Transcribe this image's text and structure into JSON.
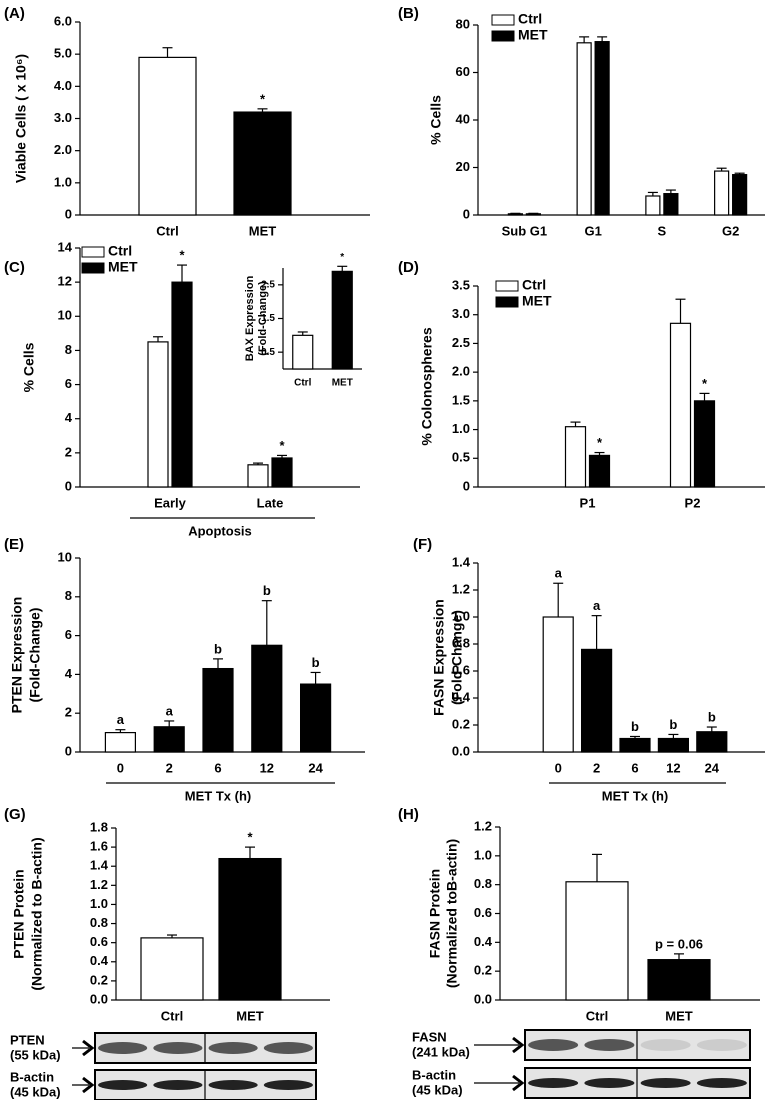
{
  "chart_data": [
    {
      "panel": "(A)",
      "type": "bar",
      "categories": [
        "Ctrl",
        "MET"
      ],
      "values": [
        4.9,
        3.2
      ],
      "errors": [
        0.3,
        0.1
      ],
      "colors": [
        "#ffffff",
        "#000000"
      ],
      "bar_labels": [
        null,
        "*"
      ],
      "ylabel": [
        "Viable Cells ( x 10⁶)"
      ],
      "ylim": [
        0,
        6
      ],
      "yticks": [
        0,
        {
          "value": 1,
          "label": "1.0"
        },
        {
          "value": 2,
          "label": "2.0"
        },
        {
          "value": 3,
          "label": "3.0"
        },
        {
          "value": 4,
          "label": "4.0"
        },
        {
          "value": 5,
          "label": "5.0"
        },
        {
          "value": 6,
          "label": "6.0"
        }
      ]
    },
    {
      "panel": "(B)",
      "type": "grouped_bar",
      "categories": [
        "Sub G1",
        "G1",
        "S",
        "G2"
      ],
      "series": [
        {
          "name": "Ctrl",
          "color": "#ffffff",
          "values": [
            0.5,
            72.5,
            8,
            18.5
          ],
          "errors": [
            0.2,
            2.5,
            1.5,
            1.2
          ]
        },
        {
          "name": "MET",
          "color": "#000000",
          "values": [
            0.5,
            73,
            9,
            17
          ],
          "errors": [
            0.2,
            2,
            1.5,
            0.6
          ]
        }
      ],
      "ylabel": [
        "% Cells"
      ],
      "ylim": [
        0,
        80
      ],
      "yticks": [
        0,
        20,
        40,
        60,
        80
      ],
      "legend": "upper left"
    },
    {
      "panel": "(C)",
      "type": "grouped_bar",
      "categories": [
        "Early",
        "Late"
      ],
      "xlabel": "Apoptosis",
      "series": [
        {
          "name": "Ctrl",
          "color": "#ffffff",
          "values": [
            8.5,
            1.3
          ],
          "errors": [
            0.3,
            0.1
          ]
        },
        {
          "name": "MET",
          "color": "#000000",
          "values": [
            12,
            1.7
          ],
          "errors": [
            1,
            0.15
          ],
          "labels": [
            "*",
            "*"
          ]
        }
      ],
      "ylabel": [
        "% Cells"
      ],
      "ylim": [
        0,
        14
      ],
      "yticks": [
        0,
        2,
        4,
        6,
        8,
        10,
        12,
        14
      ],
      "legend": "upper left",
      "inset": {
        "type": "bar",
        "categories": [
          "Ctrl",
          "MET"
        ],
        "values": [
          1.0,
          2.9
        ],
        "errors": [
          0.1,
          0.15
        ],
        "colors": [
          "#ffffff",
          "#000000"
        ],
        "bar_labels": [
          null,
          "*"
        ],
        "ylabel": [
          "BAX Expression",
          "(Fold-Change)"
        ],
        "ylim": [
          0,
          3
        ],
        "yticks": [
          0.5,
          1.5,
          2.5
        ]
      }
    },
    {
      "panel": "(D)",
      "type": "grouped_bar",
      "categories": [
        "P1",
        "P2"
      ],
      "series": [
        {
          "name": "Ctrl",
          "color": "#ffffff",
          "values": [
            1.05,
            2.85
          ],
          "errors": [
            0.08,
            0.42
          ]
        },
        {
          "name": "MET",
          "color": "#000000",
          "values": [
            0.55,
            1.5
          ],
          "errors": [
            0.05,
            0.13
          ],
          "labels": [
            "*",
            "*"
          ]
        }
      ],
      "ylabel": [
        "% Colonospheres"
      ],
      "ylim": [
        0,
        3.5
      ],
      "yticks": [
        0,
        0.5,
        {
          "value": 1,
          "label": "1.0"
        },
        1.5,
        {
          "value": 2,
          "label": "2.0"
        },
        2.5,
        {
          "value": 3,
          "label": "3.0"
        },
        3.5
      ],
      "legend": "upper left"
    },
    {
      "panel": "(E)",
      "type": "bar",
      "categories": [
        "0",
        "2",
        "6",
        "12",
        "24"
      ],
      "xlabel": "MET Tx (h)",
      "values": [
        1,
        1.3,
        4.3,
        5.5,
        3.5
      ],
      "errors": [
        0.15,
        0.3,
        0.5,
        2.3,
        0.6
      ],
      "colors": [
        "#ffffff",
        "#000000",
        "#000000",
        "#000000",
        "#000000"
      ],
      "bar_labels": [
        "a",
        "a",
        "b",
        "b",
        "b"
      ],
      "ylabel": [
        "PTEN Expression",
        "(Fold-Change)"
      ],
      "ylim": [
        0,
        10
      ],
      "yticks": [
        0,
        2,
        4,
        6,
        8,
        10
      ]
    },
    {
      "panel": "(F)",
      "type": "bar",
      "categories": [
        "0",
        "2",
        "6",
        "12",
        "24"
      ],
      "xlabel": "MET Tx (h)",
      "values": [
        1.0,
        0.76,
        0.1,
        0.1,
        0.15
      ],
      "errors": [
        0.25,
        0.25,
        0.015,
        0.03,
        0.035
      ],
      "colors": [
        "#ffffff",
        "#000000",
        "#000000",
        "#000000",
        "#000000"
      ],
      "bar_labels": [
        "a",
        "a",
        "b",
        "b",
        "b"
      ],
      "ylabel": [
        "FASN Expression",
        "(Fold-Change)"
      ],
      "ylim": [
        0,
        1.4
      ],
      "yticks": [
        {
          "value": 0,
          "label": "0.0"
        },
        0.2,
        0.4,
        0.6,
        0.8,
        {
          "value": 1,
          "label": "1.0"
        },
        1.2,
        1.4
      ]
    },
    {
      "panel": "(G)",
      "type": "bar",
      "categories": [
        "Ctrl",
        "MET"
      ],
      "values": [
        0.65,
        1.48
      ],
      "errors": [
        0.03,
        0.12
      ],
      "colors": [
        "#ffffff",
        "#000000"
      ],
      "bar_labels": [
        null,
        "*"
      ],
      "ylabel": [
        "PTEN Protein",
        "(Normalized to B-actin)"
      ],
      "ylim": [
        0,
        1.8
      ],
      "yticks": [
        {
          "value": 0,
          "label": "0.0"
        },
        0.2,
        0.4,
        0.6,
        0.8,
        {
          "value": 1,
          "label": "1.0"
        },
        1.2,
        1.4,
        1.6,
        1.8
      ],
      "blots": [
        {
          "name": "PTEN",
          "size": "(55 kDa)"
        },
        {
          "name": "B-actin",
          "size": "(45 kDa)"
        }
      ]
    },
    {
      "panel": "(H)",
      "type": "bar",
      "categories": [
        "Ctrl",
        "MET"
      ],
      "values": [
        0.82,
        0.28
      ],
      "errors": [
        0.19,
        0.04
      ],
      "colors": [
        "#ffffff",
        "#000000"
      ],
      "bar_labels": [
        null,
        "p = 0.06"
      ],
      "ylabel": [
        "FASN Protein",
        "(Normalized toB-actin)"
      ],
      "ylim": [
        0,
        1.2
      ],
      "yticks": [
        {
          "value": 0,
          "label": "0.0"
        },
        0.2,
        0.4,
        0.6,
        0.8,
        {
          "value": 1,
          "label": "1.0"
        },
        1.2
      ],
      "blots": [
        {
          "name": "FASN",
          "size": "(241 kDa)"
        },
        {
          "name": "B-actin",
          "size": "(45 kDa)"
        }
      ]
    }
  ]
}
